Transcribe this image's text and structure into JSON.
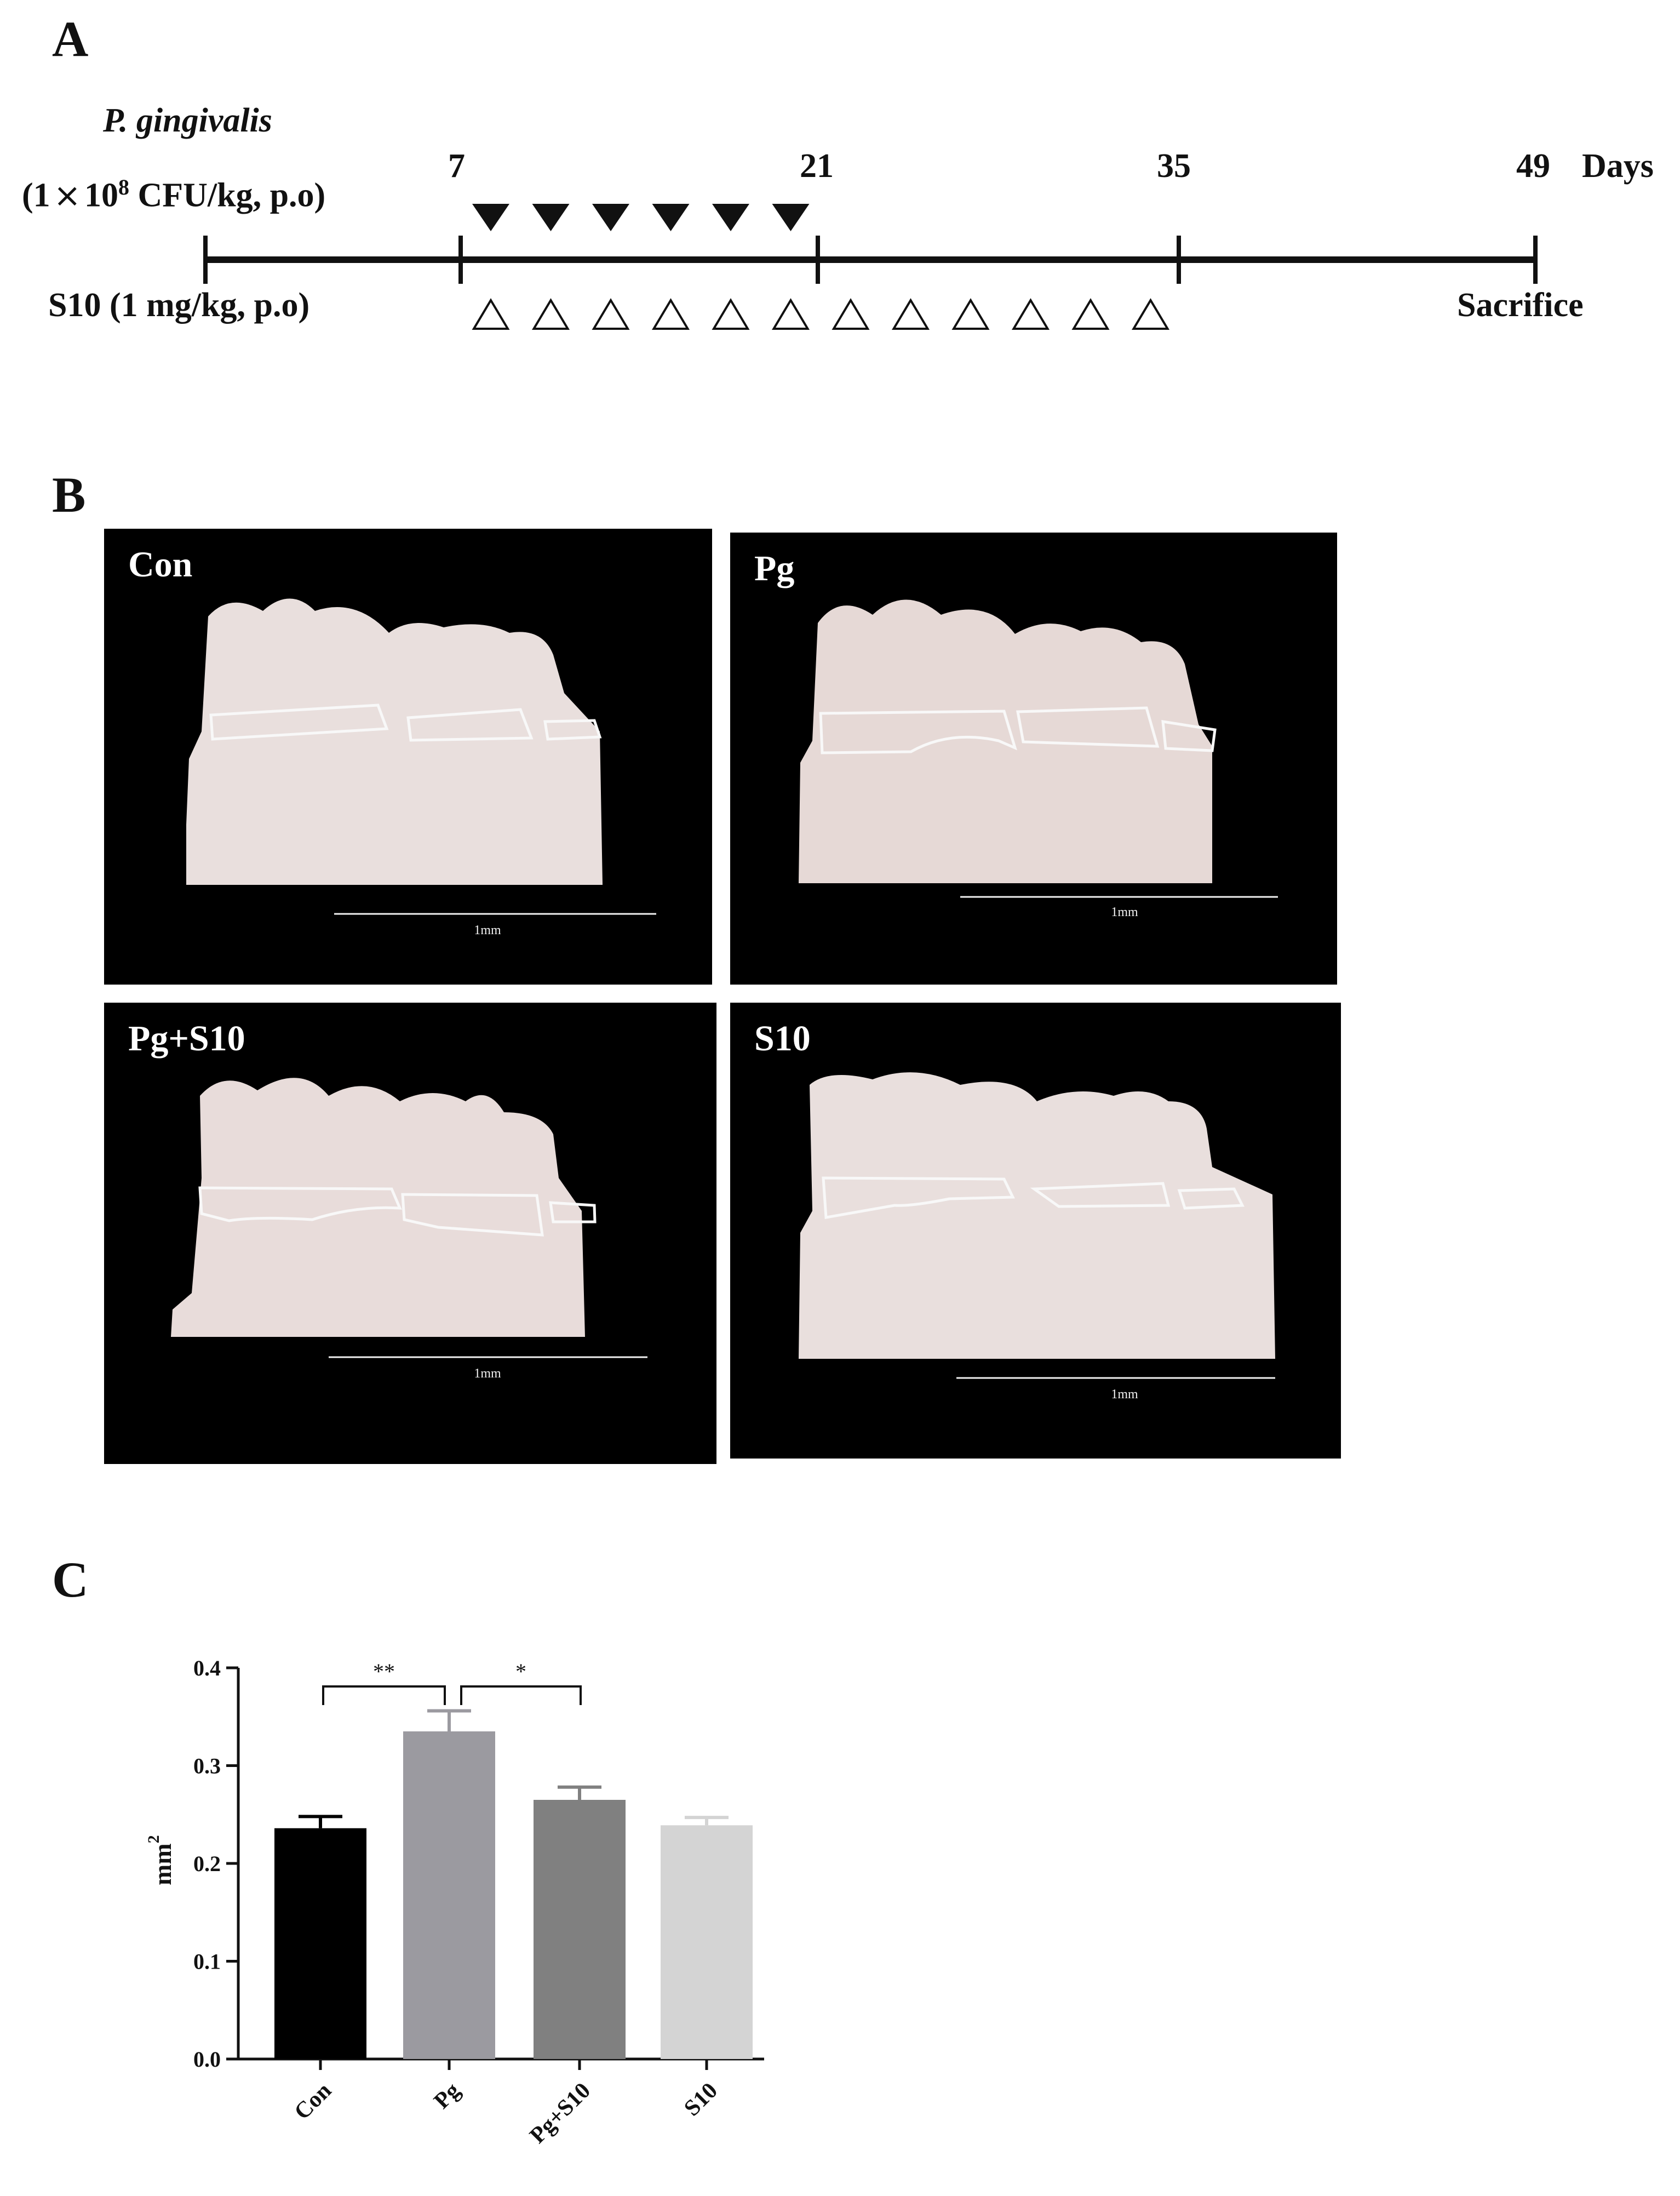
{
  "panels": {
    "a": "A",
    "b": "B",
    "c": "C"
  },
  "timeline": {
    "agent_line1": "P. gingivalis",
    "agent_line2_pre": "(1",
    "agent_line2_times": "×",
    "agent_line2_ten": "10",
    "agent_line2_exp": "8",
    "agent_line2_post": " CFU/kg, p.o)",
    "treatment": "S10 (1 mg/kg, p.o)",
    "days_label": "Days",
    "end_label": "Sacrifice",
    "day_ticks": [
      "7",
      "21",
      "35",
      "49"
    ],
    "pg_doses": 6,
    "s10_doses": 12
  },
  "micro_ct": {
    "tiles": [
      {
        "label": "Con",
        "scale": "1mm"
      },
      {
        "label": "Pg",
        "scale": "1mm"
      },
      {
        "label": "Pg+S10",
        "scale": "1mm"
      },
      {
        "label": "S10",
        "scale": "1mm"
      }
    ],
    "colors": {
      "background": "#000000",
      "bone": "#e9dfdd",
      "outline": "#f4f4f4"
    }
  },
  "chart_data": {
    "type": "bar",
    "categories": [
      "Con",
      "Pg",
      "Pg+S10",
      "S10"
    ],
    "values": [
      0.236,
      0.335,
      0.265,
      0.239
    ],
    "errors": [
      0.012,
      0.021,
      0.013,
      0.008
    ],
    "colors": [
      "#000000",
      "#9b9aa0",
      "#808080",
      "#d4d4d4"
    ],
    "ylabel": "mm",
    "ylabel_exp": "2",
    "ylim": [
      0,
      0.4
    ],
    "yticks": [
      "0.0",
      "0.1",
      "0.2",
      "0.3",
      "0.4"
    ],
    "significance": [
      {
        "from": "Con",
        "to": "Pg",
        "label": "**"
      },
      {
        "from": "Pg",
        "to": "Pg+S10",
        "label": "*"
      }
    ]
  }
}
